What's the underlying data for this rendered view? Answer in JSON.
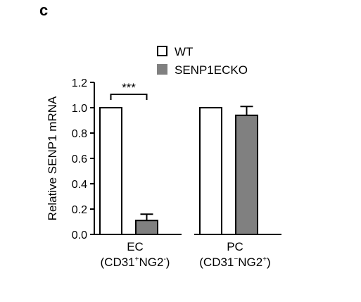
{
  "panel_label": "c",
  "chart_data": {
    "type": "bar",
    "title": "",
    "xlabel": "",
    "ylabel": "Relative SENP1 mRNA",
    "ylim": [
      0,
      1.2
    ],
    "yticks": [
      "0.0",
      "0.2",
      "0.4",
      "0.6",
      "0.8",
      "1.0",
      "1.2"
    ],
    "categories": [
      {
        "line1": "EC",
        "line2_parts": [
          "(CD31",
          "+",
          "NG2",
          "-",
          ")"
        ]
      },
      {
        "line1": "PC",
        "line2_parts": [
          "(CD31",
          "−",
          "NG2",
          "+",
          ")"
        ]
      }
    ],
    "series": [
      {
        "name": "WT",
        "color": "#ffffff",
        "values": [
          1.0,
          1.0
        ],
        "errors": [
          0,
          0
        ]
      },
      {
        "name": "SENP1ECKO",
        "color": "#808080",
        "values": [
          0.11,
          0.94
        ],
        "errors": [
          0.05,
          0.07
        ]
      }
    ],
    "legend_position": "top",
    "annotations": [
      {
        "text": "***",
        "between": [
          "EC:WT",
          "EC:SENP1ECKO"
        ]
      }
    ]
  }
}
